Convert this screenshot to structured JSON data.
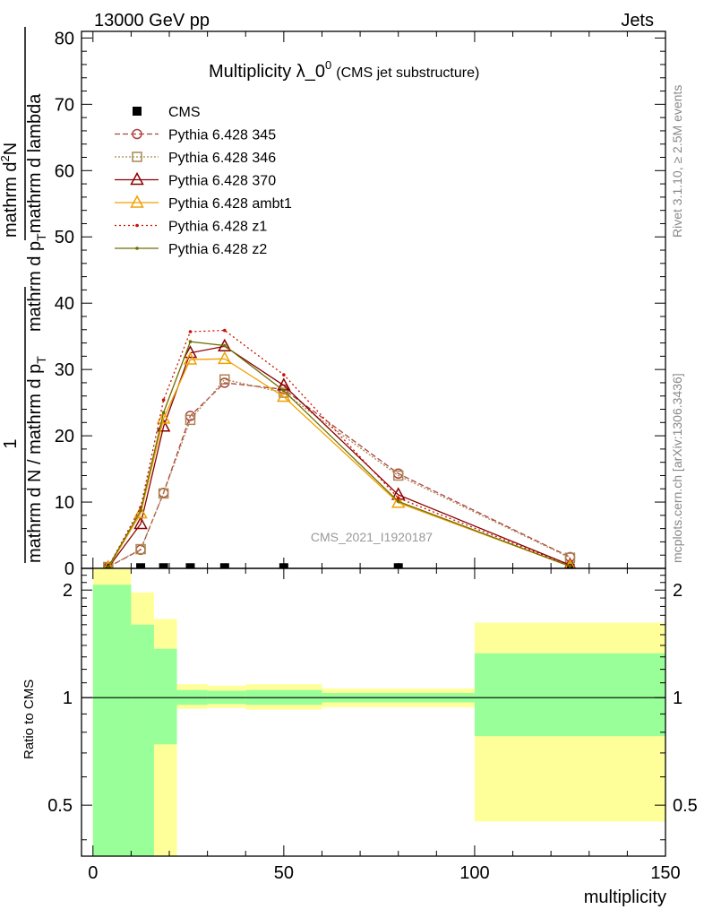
{
  "header": {
    "energy": "13000 GeV pp",
    "group": "Jets"
  },
  "side_text": {
    "rivet": "Rivet 3.1.10, ≥ 2.5M events",
    "mcplots": "mcplots.cern.ch [arXiv:1306.3436]"
  },
  "watermark": "CMS_2021_I1920187",
  "chart_data": [
    {
      "type": "line",
      "title_main": "Multiplicity λ_0",
      "title_sup": "0",
      "title_paren": "(CMS jet substructure)",
      "ylabel": {
        "numer_one": "1",
        "denom_main": "mathrm d N / mathrm d p",
        "denom_sub": "T",
        "numer_main_a": "mathrm d",
        "numer_sup": "2",
        "numer_main_b": "N",
        "frac_b_denom_a": "mathrm d p",
        "frac_b_sub": "T",
        "frac_b_denom_b": "mathrm d lambda"
      },
      "ylim": [
        0,
        81
      ],
      "xlim": [
        -3,
        150
      ],
      "yticks": [
        0,
        10,
        20,
        30,
        40,
        50,
        60,
        70,
        80
      ],
      "series": [
        {
          "name": "CMS",
          "color": "#000000",
          "marker": "square",
          "dash": "none",
          "x": [
            4,
            12.5,
            18.5,
            25.5,
            34.5,
            50,
            80,
            125
          ],
          "y": [
            0.05,
            0.1,
            0.1,
            0.1,
            0.1,
            0.1,
            0.1,
            0.05
          ]
        },
        {
          "name": "Pythia 6.428 345",
          "color": "#b04040",
          "marker": "circle",
          "dash": "6,3",
          "x": [
            4,
            12.5,
            18.5,
            25.5,
            34.5,
            50,
            80,
            125
          ],
          "y": [
            0.2,
            2.8,
            11.4,
            23.0,
            28.0,
            27.0,
            14.3,
            1.7
          ]
        },
        {
          "name": "Pythia 6.428 346",
          "color": "#a88850",
          "marker": "square-open",
          "dash": "2,2",
          "x": [
            4,
            12.5,
            18.5,
            25.5,
            34.5,
            50,
            80,
            125
          ],
          "y": [
            0.2,
            2.9,
            11.3,
            22.4,
            28.5,
            26.5,
            14.0,
            1.6
          ]
        },
        {
          "name": "Pythia 6.428 370",
          "color": "#8b0000",
          "marker": "triangle",
          "dash": "none",
          "x": [
            4,
            12.5,
            18.5,
            25.5,
            34.5,
            50,
            80,
            125
          ],
          "y": [
            0.1,
            6.7,
            21.4,
            32.5,
            33.5,
            27.6,
            11.1,
            0.5
          ]
        },
        {
          "name": "Pythia 6.428 ambt1",
          "color": "#f0a000",
          "marker": "triangle",
          "dash": "none",
          "x": [
            4,
            12.5,
            18.5,
            25.5,
            34.5,
            50,
            80,
            125
          ],
          "y": [
            0.1,
            8.3,
            22.6,
            31.5,
            31.6,
            25.9,
            9.9,
            0.3
          ]
        },
        {
          "name": "Pythia 6.428 z1",
          "color": "#cc1100",
          "marker": "dot",
          "dash": "2,3",
          "x": [
            4,
            12.5,
            18.5,
            25.5,
            34.5,
            50,
            80,
            125
          ],
          "y": [
            0.2,
            9.2,
            25.4,
            35.7,
            35.9,
            29.2,
            10.6,
            0.4
          ]
        },
        {
          "name": "Pythia 6.428 z2",
          "color": "#6b7000",
          "marker": "dot",
          "dash": "none",
          "x": [
            4,
            12.5,
            18.5,
            25.5,
            34.5,
            50,
            80,
            125
          ],
          "y": [
            0.2,
            8.7,
            23.5,
            34.2,
            33.6,
            26.8,
            10.1,
            0.3
          ]
        }
      ]
    },
    {
      "type": "area",
      "ylabel": "Ratio to CMS",
      "xlabel": "multiplicity",
      "xlim": [
        -3,
        150
      ],
      "ylim": [
        0.36,
        2.3
      ],
      "yscale": "log",
      "xticks": [
        0,
        50,
        100,
        150
      ],
      "yticks": [
        0.5,
        1,
        2
      ],
      "bins": [
        {
          "x": [
            0,
            10
          ],
          "band1": [
            0.36,
            2.07
          ],
          "band2": [
            0.36,
            2.3
          ]
        },
        {
          "x": [
            10,
            16
          ],
          "band1": [
            0.36,
            1.6
          ],
          "band2": [
            0.44,
            1.97
          ]
        },
        {
          "x": [
            16,
            22
          ],
          "band1": [
            0.74,
            1.37
          ],
          "band2": [
            0.36,
            1.66
          ]
        },
        {
          "x": [
            22,
            30
          ],
          "band1": [
            0.955,
            1.05
          ],
          "band2": [
            0.93,
            1.09
          ]
        },
        {
          "x": [
            30,
            40
          ],
          "band1": [
            0.96,
            1.045
          ],
          "band2": [
            0.935,
            1.08
          ]
        },
        {
          "x": [
            40,
            60
          ],
          "band1": [
            0.955,
            1.05
          ],
          "band2": [
            0.925,
            1.09
          ]
        },
        {
          "x": [
            60,
            100
          ],
          "band1": [
            0.97,
            1.03
          ],
          "band2": [
            0.94,
            1.06
          ]
        },
        {
          "x": [
            100,
            150
          ],
          "band1": [
            0.78,
            1.33
          ],
          "band2": [
            0.45,
            1.62
          ]
        }
      ],
      "band_colors": {
        "inner": "#99ff99",
        "outer": "#ffff99"
      }
    }
  ]
}
